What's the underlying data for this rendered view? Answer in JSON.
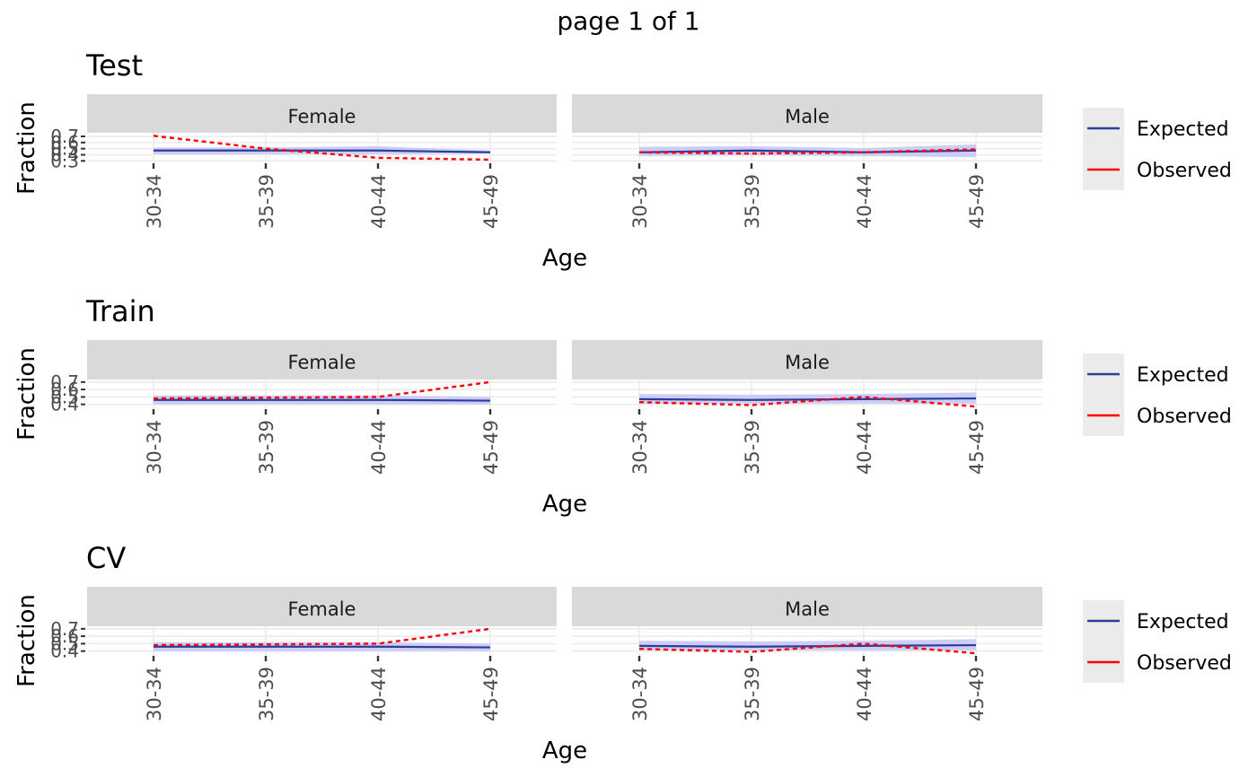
{
  "page_title": "page 1 of 1",
  "colors": {
    "expected": "#2B3F99",
    "observed": "#FF0000",
    "ribbon": "#C8C8F5",
    "strip": "#D9D9D9",
    "legend_bg": "#EBEBEB",
    "grid": "#EBEBEB"
  },
  "chart_data": [
    {
      "type": "line",
      "title": "Test",
      "xlabel": "Age",
      "ylabel": "Fraction",
      "categories": [
        "30-34",
        "35-39",
        "40-44",
        "45-49"
      ],
      "ylim": [
        0.29,
        0.73
      ],
      "yticks": [
        0.3,
        0.4,
        0.5,
        0.6,
        0.7
      ],
      "ytick_labels": [
        "0.3",
        "0.4",
        "0.5",
        "0.6",
        "0.7"
      ],
      "legend": {
        "position": "right",
        "entries": [
          "Expected",
          "Observed"
        ]
      },
      "panels": [
        {
          "strip": "Female",
          "series": [
            {
              "name": "Expected",
              "values": [
                0.47,
                0.47,
                0.47,
                0.44
              ],
              "lower": [
                0.41,
                0.41,
                0.41,
                0.42
              ],
              "upper": [
                0.52,
                0.52,
                0.54,
                0.47
              ]
            },
            {
              "name": "Observed",
              "values": [
                0.71,
                0.5,
                0.35,
                0.32
              ]
            }
          ]
        },
        {
          "strip": "Male",
          "series": [
            {
              "name": "Expected",
              "values": [
                0.44,
                0.47,
                0.44,
                0.47
              ],
              "lower": [
                0.38,
                0.39,
                0.38,
                0.36
              ],
              "upper": [
                0.53,
                0.54,
                0.51,
                0.57
              ]
            },
            {
              "name": "Observed",
              "values": [
                0.44,
                0.42,
                0.44,
                0.49
              ]
            }
          ]
        }
      ]
    },
    {
      "type": "line",
      "title": "Train",
      "xlabel": "Age",
      "ylabel": "Fraction",
      "categories": [
        "30-34",
        "35-39",
        "40-44",
        "45-49"
      ],
      "ylim": [
        0.36,
        0.71
      ],
      "yticks": [
        0.4,
        0.5,
        0.6,
        0.7
      ],
      "ytick_labels": [
        "0.4",
        "0.5",
        "0.6",
        "0.7"
      ],
      "legend": {
        "position": "right",
        "entries": [
          "Expected",
          "Observed"
        ]
      },
      "panels": [
        {
          "strip": "Female",
          "series": [
            {
              "name": "Expected",
              "values": [
                0.46,
                0.46,
                0.46,
                0.45
              ],
              "lower": [
                0.4,
                0.4,
                0.4,
                0.4
              ],
              "upper": [
                0.52,
                0.52,
                0.52,
                0.5
              ]
            },
            {
              "name": "Observed",
              "values": [
                0.48,
                0.49,
                0.5,
                0.7
              ]
            }
          ]
        },
        {
          "strip": "Male",
          "series": [
            {
              "name": "Expected",
              "values": [
                0.47,
                0.46,
                0.47,
                0.48
              ],
              "lower": [
                0.41,
                0.41,
                0.41,
                0.41
              ],
              "upper": [
                0.54,
                0.53,
                0.54,
                0.56
              ]
            },
            {
              "name": "Observed",
              "values": [
                0.43,
                0.39,
                0.5,
                0.37
              ]
            }
          ]
        }
      ]
    },
    {
      "type": "line",
      "title": "CV",
      "xlabel": "Age",
      "ylabel": "Fraction",
      "categories": [
        "30-34",
        "35-39",
        "40-44",
        "45-49"
      ],
      "ylim": [
        0.36,
        0.71
      ],
      "yticks": [
        0.4,
        0.5,
        0.6,
        0.7
      ],
      "ytick_labels": [
        "0.4",
        "0.5",
        "0.6",
        "0.7"
      ],
      "legend": {
        "position": "right",
        "entries": [
          "Expected",
          "Observed"
        ]
      },
      "panels": [
        {
          "strip": "Female",
          "series": [
            {
              "name": "Expected",
              "values": [
                0.46,
                0.46,
                0.46,
                0.45
              ],
              "lower": [
                0.4,
                0.4,
                0.4,
                0.4
              ],
              "upper": [
                0.52,
                0.52,
                0.52,
                0.5
              ]
            },
            {
              "name": "Observed",
              "values": [
                0.48,
                0.49,
                0.5,
                0.7
              ]
            }
          ]
        },
        {
          "strip": "Male",
          "series": [
            {
              "name": "Expected",
              "values": [
                0.47,
                0.46,
                0.47,
                0.48
              ],
              "lower": [
                0.41,
                0.41,
                0.41,
                0.41
              ],
              "upper": [
                0.54,
                0.53,
                0.54,
                0.56
              ]
            },
            {
              "name": "Observed",
              "values": [
                0.43,
                0.39,
                0.5,
                0.37
              ]
            }
          ]
        }
      ]
    }
  ]
}
